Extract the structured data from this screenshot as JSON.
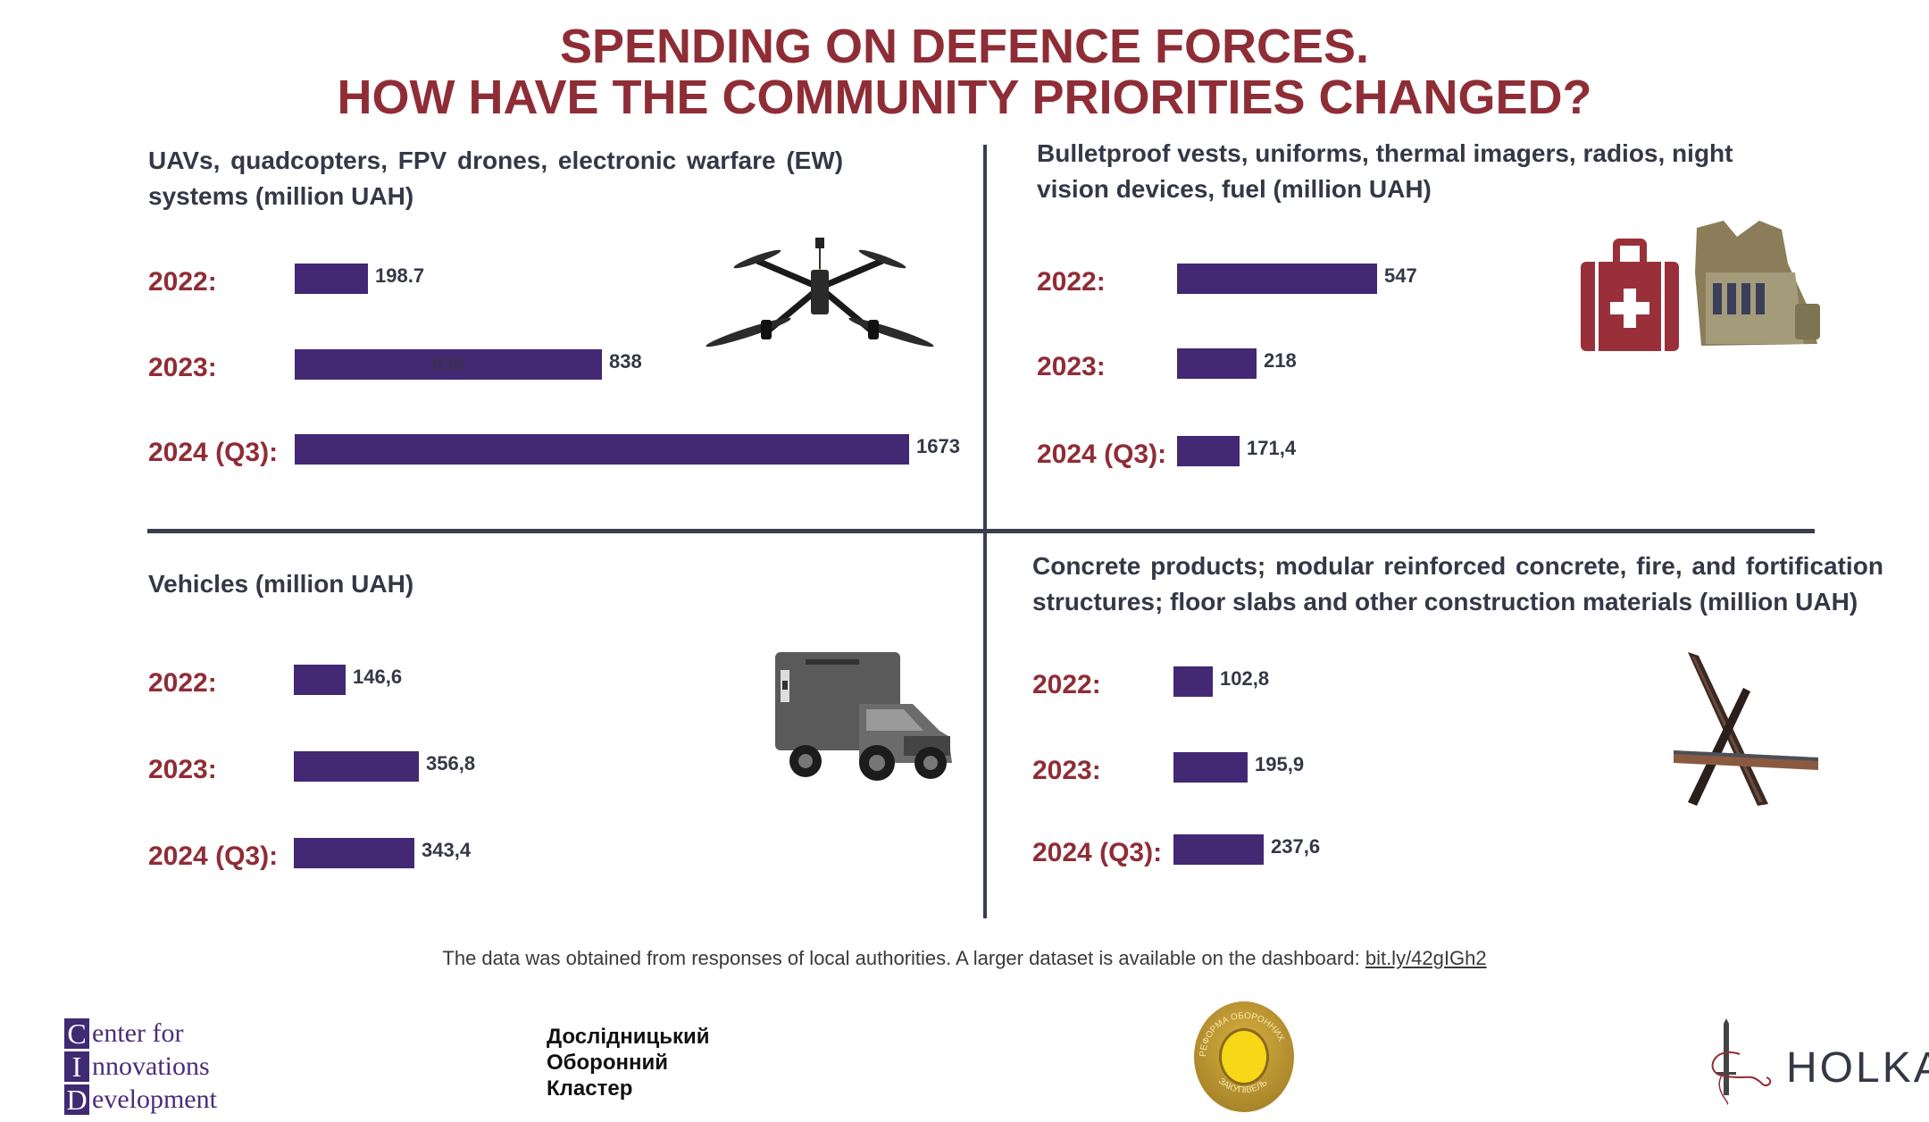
{
  "title": {
    "line1": "SPENDING ON DEFENCE FORCES.",
    "line2": "HOW HAVE THE COMMUNITY PRIORITIES CHANGED?"
  },
  "colors": {
    "title": "#8f2d36",
    "bar": "#432874",
    "text": "#343846",
    "divider": "#3a3d4a"
  },
  "chart_data": [
    {
      "type": "bar",
      "orientation": "horizontal",
      "title_line1": "UAVs, quadcopters, FPV drones, electronic warfare (EW)",
      "title_line2": "systems (million UAH)",
      "categories": [
        "2022:",
        "2023:",
        "2024 (Q3):"
      ],
      "values": [
        198.7,
        838,
        1673
      ],
      "value_labels": [
        "198.7",
        "838",
        "1673"
      ],
      "inner_label": "838",
      "illustration": "drone-icon",
      "xlabel": "",
      "ylabel": "",
      "grid": false
    },
    {
      "type": "bar",
      "orientation": "horizontal",
      "title_line1": "Bulletproof vests, uniforms, thermal imagers, radios, night",
      "title_line2": "vision devices, fuel (million UAH)",
      "categories": [
        "2022:",
        "2023:",
        "2024 (Q3):"
      ],
      "values": [
        547,
        218,
        171.4
      ],
      "value_labels": [
        "547",
        "218",
        "171,4"
      ],
      "illustration": "medkit-vest-icon",
      "xlabel": "",
      "ylabel": "",
      "grid": false
    },
    {
      "type": "bar",
      "orientation": "horizontal",
      "title_line1": "Vehicles (million UAH)",
      "title_line2": "",
      "categories": [
        "2022:",
        "2023:",
        "2024 (Q3):"
      ],
      "values": [
        146.6,
        356.8,
        343.4
      ],
      "value_labels": [
        "146,6",
        "356,8",
        "343,4"
      ],
      "illustration": "ambulance-truck-icon",
      "xlabel": "",
      "ylabel": "",
      "grid": false
    },
    {
      "type": "bar",
      "orientation": "horizontal",
      "title_line1": "Concrete products; modular reinforced concrete, fire, and fortification",
      "title_line2": "structures; floor slabs and other construction materials (million UAH)",
      "categories": [
        "2022:",
        "2023:",
        "2024 (Q3):"
      ],
      "values": [
        102.8,
        195.9,
        237.6
      ],
      "value_labels": [
        "102,8",
        "195,9",
        "237,6"
      ],
      "illustration": "czech-hedgehog-icon",
      "xlabel": "",
      "ylabel": "",
      "grid": false
    }
  ],
  "footnote": {
    "text": "The data was obtained from responses of local authorities. A larger dataset is available on the dashboard: ",
    "link": "bit.ly/42gIGh2"
  },
  "logos": {
    "cid": [
      {
        "cap": "C",
        "rest": "enter for"
      },
      {
        "cap": "I",
        "rest": "nnovations"
      },
      {
        "cap": "D",
        "rest": "evelopment"
      }
    ],
    "cluster": [
      "Дослідницький",
      "Оборонний",
      "Кластер"
    ],
    "reform": {
      "arc_top": "РЕФОРМА ОБОРОННИХ",
      "arc_bottom": "ЗАКУПІВЕЛЬ"
    },
    "holka": "HOLKA"
  }
}
